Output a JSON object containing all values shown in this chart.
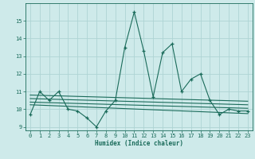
{
  "x": [
    0,
    1,
    2,
    3,
    4,
    5,
    6,
    7,
    8,
    9,
    10,
    11,
    12,
    13,
    14,
    15,
    16,
    17,
    18,
    19,
    20,
    21,
    22,
    23
  ],
  "y_main": [
    9.7,
    11.0,
    10.5,
    11.0,
    10.0,
    9.9,
    9.5,
    9.0,
    9.9,
    10.5,
    13.5,
    15.5,
    13.3,
    10.7,
    13.2,
    13.7,
    11.0,
    11.7,
    12.0,
    10.5,
    9.7,
    10.0,
    9.9,
    9.9
  ],
  "trend_lines": [
    {
      "x": [
        0,
        23
      ],
      "y": [
        10.8,
        10.45
      ]
    },
    {
      "x": [
        0,
        23
      ],
      "y": [
        10.6,
        10.25
      ]
    },
    {
      "x": [
        0,
        23
      ],
      "y": [
        10.4,
        10.05
      ]
    },
    {
      "x": [
        0,
        23
      ],
      "y": [
        10.25,
        9.75
      ]
    }
  ],
  "color": "#1a6b5a",
  "bg_color": "#ceeaea",
  "grid_color": "#aed4d4",
  "xlabel": "Humidex (Indice chaleur)",
  "ylabel": "",
  "ylim": [
    8.8,
    16.0
  ],
  "xlim": [
    -0.5,
    23.5
  ],
  "yticks": [
    9,
    10,
    11,
    12,
    13,
    14,
    15
  ],
  "xticks": [
    0,
    1,
    2,
    3,
    4,
    5,
    6,
    7,
    8,
    9,
    10,
    11,
    12,
    13,
    14,
    15,
    16,
    17,
    18,
    19,
    20,
    21,
    22,
    23
  ]
}
